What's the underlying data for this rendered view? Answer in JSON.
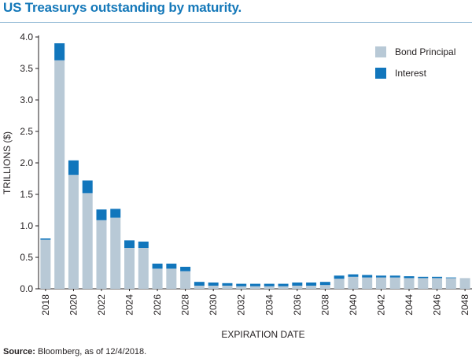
{
  "title": "US Treasurys outstanding by maturity.",
  "source_label": "Source:",
  "source_text": " Bloomberg, as of 12/4/2018.",
  "colors": {
    "title": "#1478b9",
    "principal": "#b8c9d6",
    "interest": "#1176bc",
    "axis": "#231f20"
  },
  "chart_data": {
    "type": "bar",
    "stacked": true,
    "title": "US Treasurys outstanding by maturity.",
    "xlabel": "EXPIRATION DATE",
    "ylabel": "TRILLIONS ($)",
    "ylim": [
      0,
      4.0
    ],
    "yticks": [
      "0.0",
      "0.5",
      "1.0",
      "1.5",
      "2.0",
      "2.5",
      "3.0",
      "3.5",
      "4.0"
    ],
    "grid": false,
    "legend_position": "top-right",
    "categories": [
      "2018",
      "2019",
      "2020",
      "2021",
      "2022",
      "2023",
      "2024",
      "2025",
      "2026",
      "2027",
      "2028",
      "2029",
      "2030",
      "2031",
      "2032",
      "2033",
      "2034",
      "2035",
      "2036",
      "2037",
      "2038",
      "2039",
      "2040",
      "2041",
      "2042",
      "2043",
      "2044",
      "2045",
      "2046",
      "2047",
      "2048"
    ],
    "tick_labels": [
      "2018",
      "2020",
      "2022",
      "2024",
      "2026",
      "2028",
      "2030",
      "2032",
      "2034",
      "2036",
      "2038",
      "2040",
      "2042",
      "2044",
      "2046",
      "2048"
    ],
    "series": [
      {
        "name": "Bond Principal",
        "values": [
          0.78,
          3.63,
          1.81,
          1.52,
          1.09,
          1.13,
          0.65,
          0.65,
          0.32,
          0.32,
          0.28,
          0.05,
          0.05,
          0.05,
          0.04,
          0.04,
          0.04,
          0.04,
          0.05,
          0.05,
          0.06,
          0.16,
          0.19,
          0.18,
          0.18,
          0.18,
          0.17,
          0.17,
          0.17,
          0.17,
          0.17
        ]
      },
      {
        "name": "Interest",
        "values": [
          0.02,
          0.27,
          0.23,
          0.2,
          0.17,
          0.14,
          0.12,
          0.1,
          0.08,
          0.08,
          0.07,
          0.06,
          0.05,
          0.04,
          0.04,
          0.04,
          0.04,
          0.04,
          0.05,
          0.05,
          0.05,
          0.05,
          0.04,
          0.04,
          0.03,
          0.03,
          0.03,
          0.02,
          0.02,
          0.01,
          0.0
        ]
      }
    ]
  }
}
